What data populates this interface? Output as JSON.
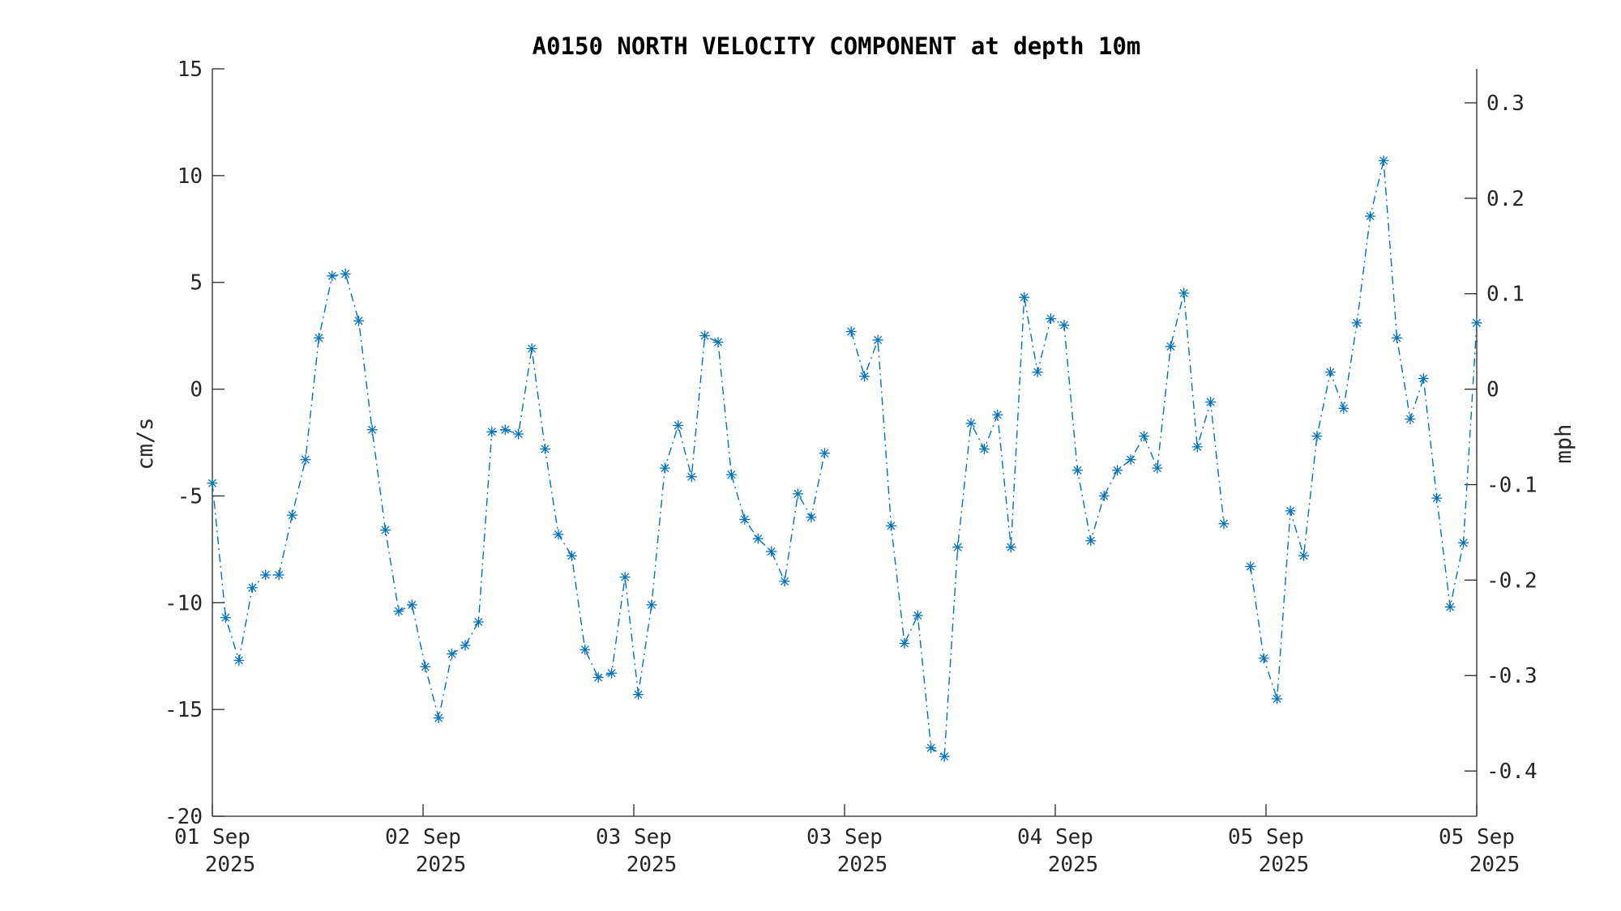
{
  "chart_data": {
    "type": "line",
    "title": "A0150 NORTH VELOCITY COMPONENT at depth 10m",
    "ylabel": "cm/s",
    "y2label": "mph",
    "ylim": [
      -20,
      15
    ],
    "y2lim": [
      -0.4474,
      0.3356
    ],
    "yticks": [
      15,
      10,
      5,
      0,
      -5,
      -10,
      -15,
      -20
    ],
    "yticklabels": [
      "15",
      "10",
      "5",
      "0",
      "-5",
      "-10",
      "-15",
      "-20"
    ],
    "y2ticks": [
      0.3,
      0.2,
      0.1,
      0,
      -0.1,
      -0.2,
      -0.3,
      -0.4
    ],
    "y2ticklabels": [
      "0.3",
      "0.2",
      "0.1",
      "0",
      "-0.1",
      "-0.2",
      "-0.3",
      "-0.4"
    ],
    "xticks": [
      {
        "day": "01 Sep",
        "year": "2025"
      },
      {
        "day": "02 Sep",
        "year": "2025"
      },
      {
        "day": "03 Sep",
        "year": "2025"
      },
      {
        "day": "03 Sep",
        "year": "2025"
      },
      {
        "day": "04 Sep",
        "year": "2025"
      },
      {
        "day": "05 Sep",
        "year": "2025"
      },
      {
        "day": "05 Sep",
        "year": "2025"
      }
    ],
    "grid": false,
    "line_color": "#0072BD",
    "line_style": "dash-dot",
    "marker": "asterisk",
    "series": [
      {
        "values": [
          -4.4,
          -10.7,
          -12.7,
          -9.3,
          -8.7,
          -8.7,
          -5.9,
          -3.3,
          2.4,
          5.3,
          5.4,
          3.2,
          -1.9,
          -6.6,
          -10.4,
          -10.1,
          -13.0,
          -15.4,
          -12.4,
          -12.0,
          -10.9,
          -2.0,
          -1.9,
          -2.1,
          1.9,
          -2.8,
          -6.8,
          -7.8,
          -12.2,
          -13.5,
          -13.3,
          -8.8,
          -14.3,
          -10.1,
          -3.7,
          -1.7,
          -4.1,
          2.5,
          2.2,
          -4.0,
          -6.1,
          -7.0,
          -7.6,
          -9.0,
          -4.9,
          -6.0,
          -3.0,
          null,
          2.7,
          0.6,
          2.3,
          -6.4,
          -11.9,
          -10.6,
          -16.8,
          -17.2,
          -7.4,
          -1.6,
          -2.8,
          -1.2,
          -7.4,
          4.3,
          0.8,
          3.3,
          3.0,
          -3.8,
          -7.1,
          -5.0,
          -3.8,
          -3.3,
          -2.2,
          -3.7,
          2.0,
          4.5,
          -2.7,
          -0.6,
          -6.3,
          null,
          -8.3,
          -12.6,
          -14.5,
          -5.7,
          -7.8,
          -2.2,
          0.8,
          -0.9,
          3.1,
          8.1,
          10.7,
          2.4,
          -1.4,
          0.5,
          -5.1,
          -10.2,
          -7.2,
          3.1
        ]
      }
    ]
  }
}
